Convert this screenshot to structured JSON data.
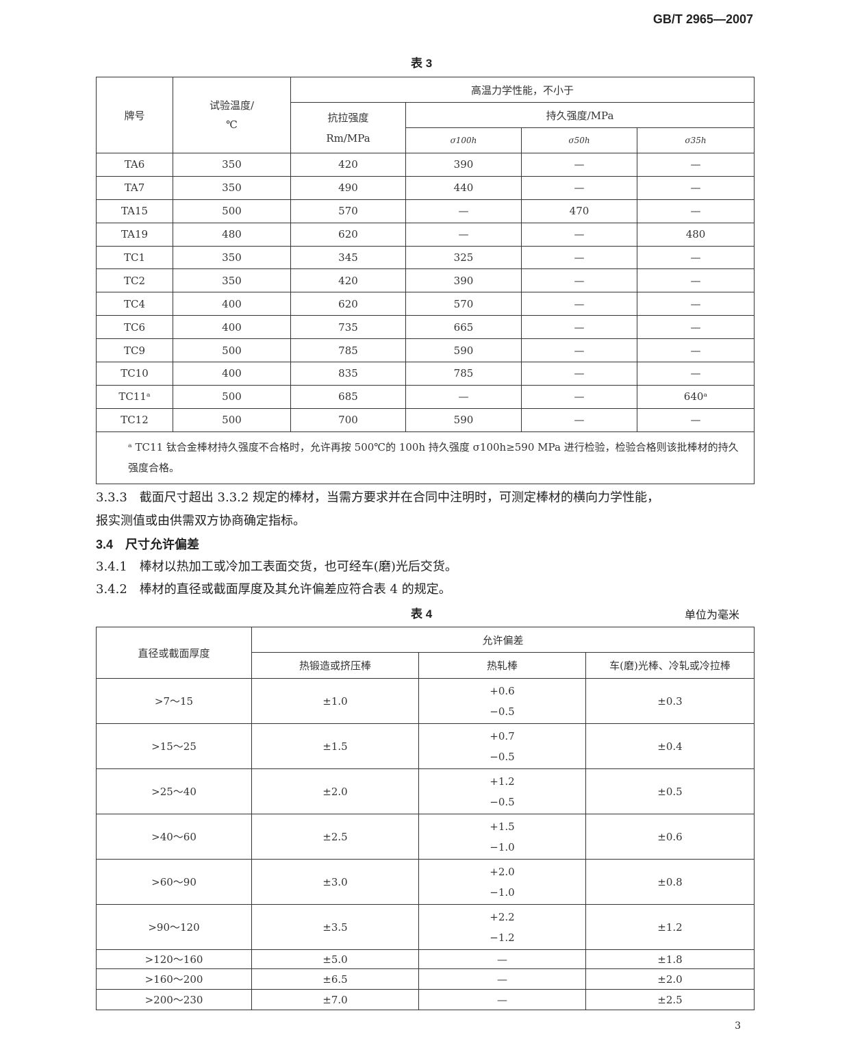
{
  "header": {
    "standard_code": "GB/T 2965—2007"
  },
  "table3": {
    "caption": "表 3",
    "headers": {
      "grade": "牌号",
      "test_temp": "试验温度/",
      "test_temp_unit": "℃",
      "high_temp_props": "高温力学性能，不小于",
      "tensile": "抗拉强度",
      "tensile_unit": "Rm/MPa",
      "creep": "持久强度/MPa",
      "sigma_100h": "σ100h",
      "sigma_50h": "σ50h",
      "sigma_35h": "σ35h"
    },
    "rows": [
      [
        "TA6",
        "350",
        "420",
        "390",
        "—",
        "—"
      ],
      [
        "TA7",
        "350",
        "490",
        "440",
        "—",
        "—"
      ],
      [
        "TA15",
        "500",
        "570",
        "—",
        "470",
        "—"
      ],
      [
        "TA19",
        "480",
        "620",
        "—",
        "—",
        "480"
      ],
      [
        "TC1",
        "350",
        "345",
        "325",
        "—",
        "—"
      ],
      [
        "TC2",
        "350",
        "420",
        "390",
        "—",
        "—"
      ],
      [
        "TC4",
        "400",
        "620",
        "570",
        "—",
        "—"
      ],
      [
        "TC6",
        "400",
        "735",
        "665",
        "—",
        "—"
      ],
      [
        "TC9",
        "500",
        "785",
        "590",
        "—",
        "—"
      ],
      [
        "TC10",
        "400",
        "835",
        "785",
        "—",
        "—"
      ],
      [
        "TC11ᵃ",
        "500",
        "685",
        "—",
        "—",
        "640ᵃ"
      ],
      [
        "TC12",
        "500",
        "700",
        "590",
        "—",
        "—"
      ]
    ],
    "footnote": "ᵃ TC11 钛合金棒材持久强度不合格时，允许再按 500℃的 100h 持久强度 σ100h≥590 MPa 进行检验，检验合格则该批棒材的持久强度合格。"
  },
  "body": {
    "p333": "3.3.3　截面尺寸超出 3.3.2 规定的棒材，当需方要求并在合同中注明时，可测定棒材的横向力学性能，",
    "p333b": "报实测值或由供需双方协商确定指标。",
    "h34": "3.4　尺寸允许偏差",
    "p341": "3.4.1　棒材以热加工或冷加工表面交货，也可经车(磨)光后交货。",
    "p342": "3.4.2　棒材的直径或截面厚度及其允许偏差应符合表 4 的规定。"
  },
  "table4": {
    "caption": "表 4",
    "unit": "单位为毫米",
    "headers": {
      "size": "直径或截面厚度",
      "tolerance": "允许偏差",
      "forged": "热锻造或挤压棒",
      "hot_rolled": "热轧棒",
      "turned": "车(磨)光棒、冷轧或冷拉棒"
    },
    "rows": [
      [
        ">7～15",
        "±1.0",
        "+0.6",
        "−0.5",
        "±0.3"
      ],
      [
        ">15～25",
        "±1.5",
        "+0.7",
        "−0.5",
        "±0.4"
      ],
      [
        ">25～40",
        "±2.0",
        "+1.2",
        "−0.5",
        "±0.5"
      ],
      [
        ">40～60",
        "±2.5",
        "+1.5",
        "−1.0",
        "±0.6"
      ],
      [
        ">60～90",
        "±3.0",
        "+2.0",
        "−1.0",
        "±0.8"
      ],
      [
        ">90～120",
        "±3.5",
        "+2.2",
        "−1.2",
        "±1.2"
      ],
      [
        ">120～160",
        "±5.0",
        "—",
        "",
        "±1.8"
      ],
      [
        ">160～200",
        "±6.5",
        "—",
        "",
        "±2.0"
      ],
      [
        ">200～230",
        "±7.0",
        "—",
        "",
        "±2.5"
      ]
    ]
  },
  "footer": {
    "page_number": "3"
  }
}
